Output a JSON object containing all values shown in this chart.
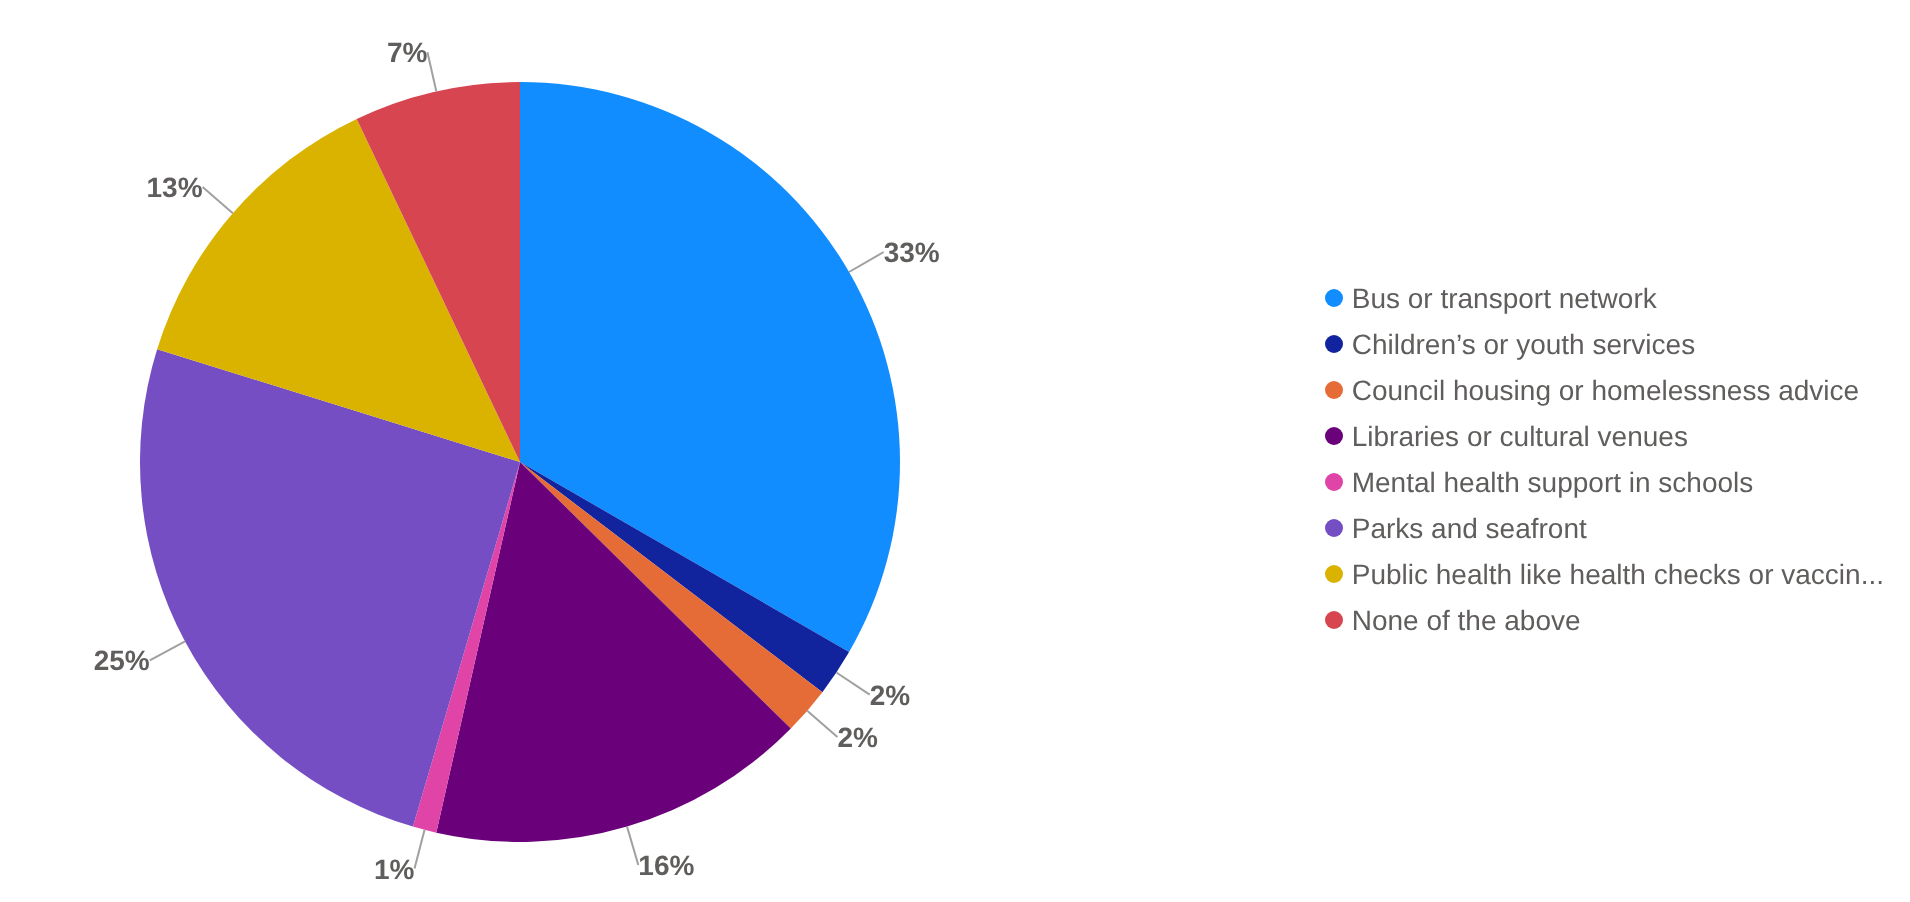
{
  "chart_data": {
    "type": "pie",
    "categories": [
      "Bus or transport network",
      "Children’s or youth services",
      "Council housing or homelessness advice",
      "Libraries or cultural venues",
      "Mental health support in schools",
      "Parks and seafront",
      "Public health like health checks or vaccin...",
      "None of the above"
    ],
    "values": [
      33,
      2,
      2,
      16,
      1,
      25,
      13,
      7
    ],
    "value_labels": [
      "33%",
      "2%",
      "2%",
      "16%",
      "1%",
      "25%",
      "13%",
      "7%"
    ],
    "colors": [
      "#118dff",
      "#12239e",
      "#e66c37",
      "#6b007b",
      "#e044a7",
      "#744ec2",
      "#d9b300",
      "#d64550"
    ],
    "legend": "right"
  }
}
